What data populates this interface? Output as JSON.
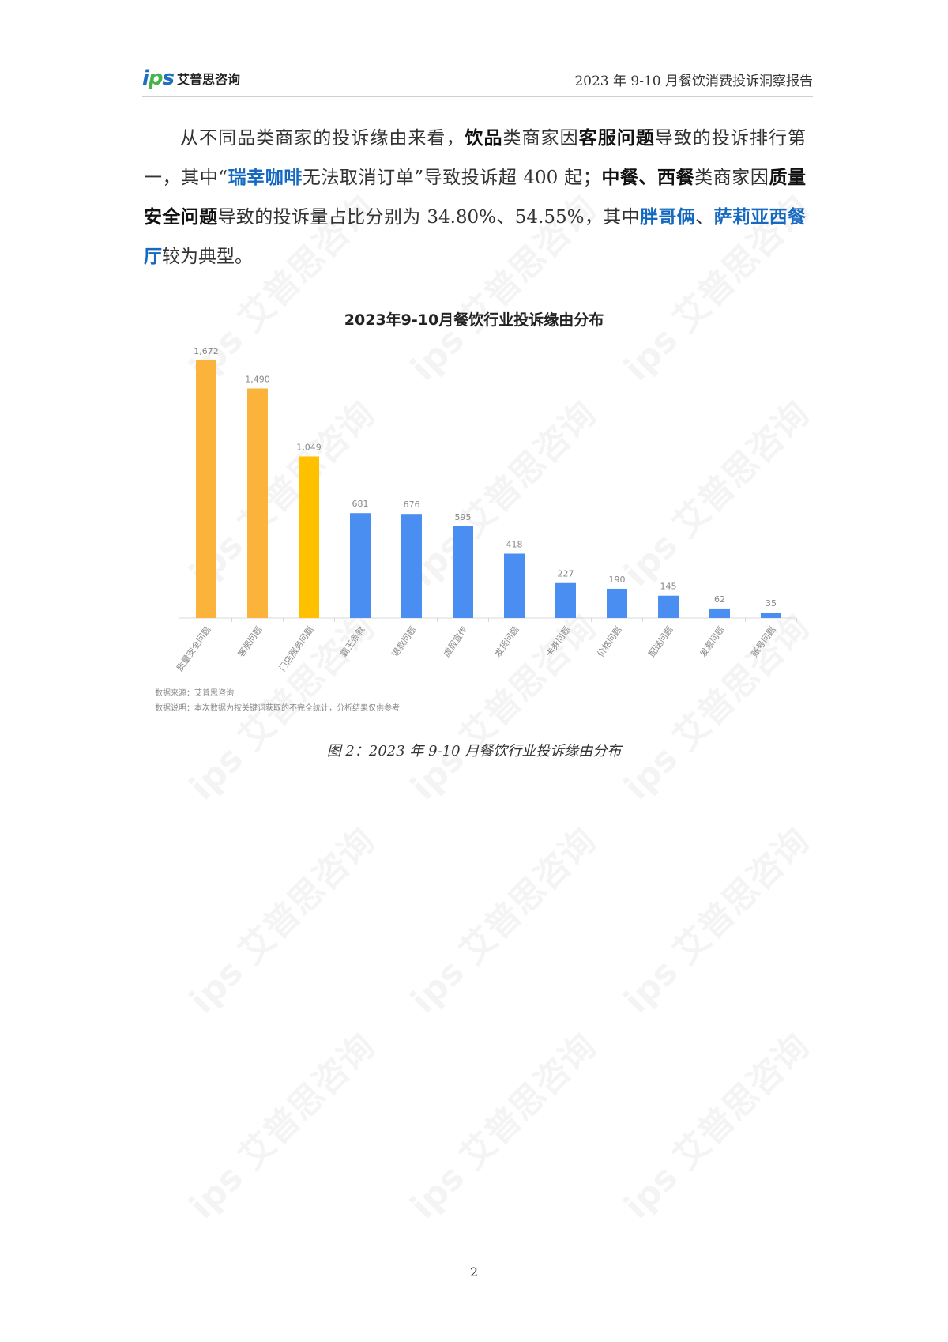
{
  "header": {
    "logo_mark": "ips",
    "logo_name": "艾普思咨询",
    "title": "2023 年 9-10 月餐饮消费投诉洞察报告"
  },
  "paragraph": [
    {
      "t": "从不同品类商家的投诉缘由来看，",
      "s": "n"
    },
    {
      "t": "饮品",
      "s": "b"
    },
    {
      "t": "类商家因",
      "s": "n"
    },
    {
      "t": "客服问题",
      "s": "b"
    },
    {
      "t": "导致的投诉排行第一，其中“",
      "s": "n"
    },
    {
      "t": "瑞幸咖啡",
      "s": "l"
    },
    {
      "t": "无法取消订单”导致投诉超 400 起；",
      "s": "n"
    },
    {
      "t": "中餐、西餐",
      "s": "b"
    },
    {
      "t": "类商家因",
      "s": "n"
    },
    {
      "t": "质量安全问题",
      "s": "b"
    },
    {
      "t": "导致的投诉量占比分别为 34.80%、54.55%，其中",
      "s": "n"
    },
    {
      "t": "胖哥俩",
      "s": "l"
    },
    {
      "t": "、",
      "s": "n"
    },
    {
      "t": "萨莉亚西餐厅",
      "s": "l"
    },
    {
      "t": "较为典型。",
      "s": "n"
    }
  ],
  "chart_data": {
    "type": "bar",
    "title": "2023年9-10月餐饮行业投诉缘由分布",
    "categories": [
      "质量安全问题",
      "客服问题",
      "门店服务问题",
      "霸王条款",
      "退款问题",
      "虚假宣传",
      "发货问题",
      "卡券问题",
      "价格问题",
      "配送问题",
      "发票问题",
      "账号问题"
    ],
    "values": [
      1672,
      1490,
      1049,
      681,
      676,
      595,
      418,
      227,
      190,
      145,
      62,
      35
    ],
    "value_labels": [
      "1,672",
      "1,490",
      "1,049",
      "681",
      "676",
      "595",
      "418",
      "227",
      "190",
      "145",
      "62",
      "35"
    ],
    "colors": [
      "#FBB33B",
      "#FBB33B",
      "#FFC000",
      "#4B8EF1",
      "#4B8EF1",
      "#4B8EF1",
      "#4B8EF1",
      "#4B8EF1",
      "#4B8EF1",
      "#4B8EF1",
      "#4B8EF1",
      "#4B8EF1"
    ],
    "grid": false,
    "legend": "none"
  },
  "source": "数据来源：艾普思咨询",
  "note": "数据说明：本次数据为按关键词获取的不完全统计，分析结果仅供参考",
  "caption": "图 2：2023 年 9-10 月餐饮行业投诉缘由分布",
  "page_number": "2",
  "watermark": "ips 艾普思咨询"
}
